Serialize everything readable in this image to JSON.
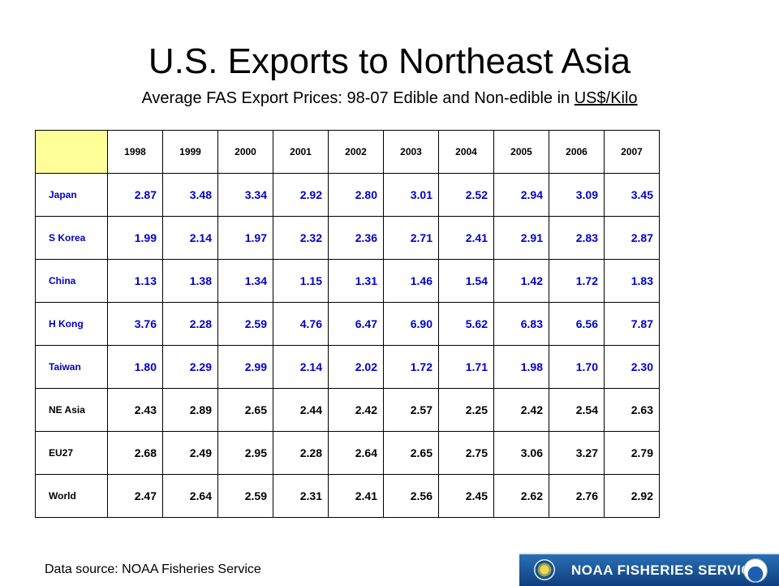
{
  "header": {
    "title": "U.S. Exports to Northeast Asia",
    "subtitle_prefix": "Average FAS Export Prices: 98-07 Edible and Non-edible in ",
    "subtitle_unit": "US$/Kilo"
  },
  "table": {
    "years": [
      "1998",
      "1999",
      "2000",
      "2001",
      "2002",
      "2003",
      "2004",
      "2005",
      "2006",
      "2007"
    ],
    "rows": [
      {
        "label": "Japan",
        "values": [
          "2.87",
          "3.48",
          "3.34",
          "2.92",
          "2.80",
          "3.01",
          "2.52",
          "2.94",
          "3.09",
          "3.45"
        ]
      },
      {
        "label": "S Korea",
        "values": [
          "1.99",
          "2.14",
          "1.97",
          "2.32",
          "2.36",
          "2.71",
          "2.41",
          "2.91",
          "2.83",
          "2.87"
        ]
      },
      {
        "label": "China",
        "values": [
          "1.13",
          "1.38",
          "1.34",
          "1.15",
          "1.31",
          "1.46",
          "1.54",
          "1.42",
          "1.72",
          "1.83"
        ]
      },
      {
        "label": "H Kong",
        "values": [
          "3.76",
          "2.28",
          "2.59",
          "4.76",
          "6.47",
          "6.90",
          "5.62",
          "6.83",
          "6.56",
          "7.87"
        ]
      },
      {
        "label": "Taiwan",
        "values": [
          "1.80",
          "2.29",
          "2.99",
          "2.14",
          "2.02",
          "1.72",
          "1.71",
          "1.98",
          "1.70",
          "2.30"
        ]
      },
      {
        "label": "NE Asia",
        "values": [
          "2.43",
          "2.89",
          "2.65",
          "2.44",
          "2.42",
          "2.57",
          "2.25",
          "2.42",
          "2.54",
          "2.63"
        ]
      },
      {
        "label": "EU27",
        "values": [
          "2.68",
          "2.49",
          "2.95",
          "2.28",
          "2.64",
          "2.65",
          "2.75",
          "3.06",
          "3.27",
          "2.79"
        ]
      },
      {
        "label": "World",
        "values": [
          "2.47",
          "2.64",
          "2.59",
          "2.31",
          "2.41",
          "2.56",
          "2.45",
          "2.62",
          "2.76",
          "2.92"
        ]
      }
    ]
  },
  "footer": {
    "source": "Data source: NOAA Fisheries Service",
    "logo_text": "NOAA FISHERIES SERVICE"
  },
  "colors": {
    "header_cell": "#ffff99",
    "country_text": "#0000cc",
    "aggregate_text": "#000000",
    "logo_bar": "#1a4f91"
  }
}
